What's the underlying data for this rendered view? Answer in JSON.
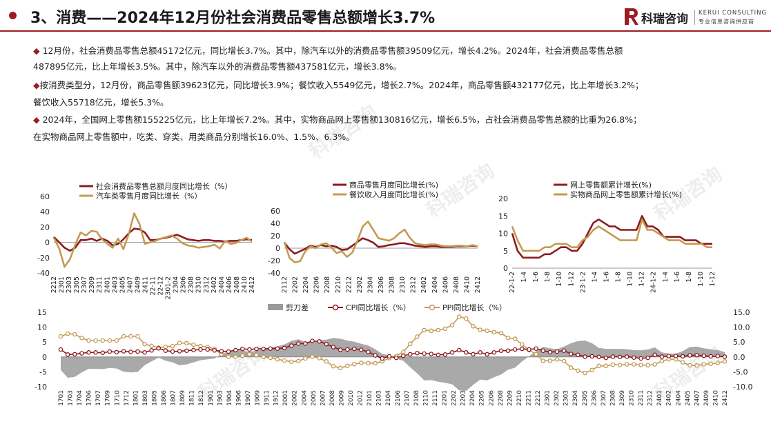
{
  "header": {
    "title": "3、消费——2024年12月份社会消费品零售总额增长3.7%",
    "logo_cn": "科瑞咨询",
    "logo_en": "KERUI CONSULTING",
    "logo_sub": "专业信息咨询供应商",
    "accent": "#9b1c22"
  },
  "paragraphs": [
    {
      "bullet": "◆",
      "text": " 12月份，社会消费品零售总额45172亿元，同比增长3.7%。其中，除汽车以外的消费品零售额39509亿元，增长4.2%。2024年，社会消费品零售总额"
    },
    {
      "bullet": "",
      "text": "487895亿元，比上年增长3.5%。其中，除汽车以外的消费品零售额437581亿元，增长3.8%。"
    },
    {
      "bullet": "◆",
      "text": "按消费类型分，12月份，商品零售额39623亿元，同比增长3.9%；餐饮收入5549亿元，增长2.7%。2024年，商品零售额432177亿元，比上年增长3.2%；"
    },
    {
      "bullet": "",
      "text": "餐饮收入55718亿元，增长5.3%。"
    },
    {
      "bullet": "◆",
      "text": " 2024年，全国网上零售额155225亿元，比上年增长7.2%。其中，实物商品网上零售额130816亿元，增长6.5%，占社会消费品零售总额的比重为26.8%；"
    },
    {
      "bullet": "",
      "text": "在实物商品网上零售额中，吃类、穿类、用类商品分别增长16.0%、1.5%、6.3%。"
    }
  ],
  "chart_data": [
    {
      "type": "line",
      "series": [
        {
          "name": "社会消费品零售总额月度同比增长（%）",
          "color": "#8b1a1f",
          "values": [
            7,
            0,
            -7,
            -11,
            -7,
            3,
            3,
            5,
            2,
            5,
            2,
            -4,
            -2,
            4,
            12,
            18,
            17,
            13,
            3,
            3,
            5,
            6,
            8,
            10,
            7,
            4,
            3,
            2,
            3,
            3,
            2,
            2,
            1,
            2,
            2,
            3,
            4,
            3
          ]
        },
        {
          "name": "汽车类零售月度同比增长（%）",
          "color": "#c49a52",
          "values": [
            6,
            -8,
            -32,
            -22,
            -3,
            13,
            9,
            15,
            14,
            4,
            -2,
            -7,
            5,
            -9,
            11,
            38,
            24,
            -2,
            0,
            2,
            5,
            7,
            9,
            5,
            -1,
            -4,
            -5,
            -7,
            -6,
            -5,
            -3,
            -8,
            2,
            -2,
            -1,
            3,
            6,
            1
          ]
        }
      ],
      "yticks": [
        "60",
        "40",
        "20",
        "0",
        "-20",
        "-40"
      ],
      "ylim": [
        -40,
        60
      ],
      "xticks": [
        "2212",
        "2301",
        "2303",
        "2305",
        "2307",
        "2309",
        "2311",
        "2401",
        "2403",
        "2405",
        "2407",
        "2409",
        "2411",
        "22-11",
        "22-12",
        "2301-2",
        "2304",
        "2306",
        "2308",
        "2310",
        "2312",
        "2402",
        "2404",
        "2406",
        "2408",
        "2410",
        "2412"
      ]
    },
    {
      "type": "line",
      "series": [
        {
          "name": "商品零售月度同比增长(%)",
          "color": "#8b1a1f",
          "values": [
            9,
            -2,
            -9,
            -5,
            -1,
            4,
            2,
            5,
            3,
            4,
            2,
            -3,
            -2,
            4,
            10,
            16,
            13,
            9,
            2,
            3,
            5,
            6,
            8,
            8,
            6,
            4,
            3,
            2,
            3,
            3,
            2,
            2,
            2,
            3,
            3,
            3,
            4,
            3
          ]
        },
        {
          "name": "餐饮收入月度同比增长(%)",
          "color": "#c49a52",
          "values": [
            10,
            -16,
            -23,
            -21,
            -5,
            3,
            0,
            6,
            8,
            1,
            -8,
            -5,
            -14,
            -7,
            12,
            35,
            43,
            30,
            16,
            14,
            12,
            16,
            24,
            30,
            17,
            8,
            6,
            5,
            6,
            6,
            4,
            3,
            3,
            4,
            4,
            3,
            5,
            3
          ]
        }
      ],
      "yticks": [
        "60",
        "40",
        "20",
        "0",
        "-20",
        "-40"
      ],
      "ylim": [
        -40,
        60
      ],
      "xticks": [
        "2112",
        "2202",
        "2204",
        "2206",
        "2208",
        "2210",
        "2212",
        "2302",
        "2304",
        "2306",
        "2308",
        "2310",
        "2312",
        "2402",
        "2404",
        "2406",
        "2408",
        "2410",
        "2412"
      ]
    },
    {
      "type": "line",
      "series": [
        {
          "name": "网上零售额累计增长(%)",
          "color": "#8b1a1f",
          "values": [
            10,
            5,
            3,
            3,
            3,
            3,
            4,
            4,
            5,
            6,
            6,
            5,
            5,
            7,
            10,
            13,
            14,
            13,
            12,
            12,
            11,
            11,
            11,
            11,
            15,
            12,
            12,
            11,
            9,
            9,
            9,
            9,
            8,
            8,
            8,
            7,
            7,
            7
          ]
        },
        {
          "name": "实物商品网上零售额累计增长(%)",
          "color": "#c49a52",
          "values": [
            12,
            8,
            5,
            5,
            5,
            5,
            6,
            6,
            7,
            7,
            7,
            6,
            6,
            8,
            9,
            11,
            12,
            11,
            10,
            9,
            8,
            8,
            8,
            8,
            14,
            11,
            11,
            10,
            9,
            8,
            8,
            8,
            7,
            7,
            7,
            7,
            6,
            6
          ]
        }
      ],
      "yticks": [
        "20",
        "15",
        "10",
        "5",
        "0"
      ],
      "ylim": [
        0,
        20
      ],
      "xticks": [
        "22-1-2",
        "1-4",
        "1-6",
        "1-8",
        "1-10",
        "1-12",
        "23-1-2",
        "1-4",
        "1-6",
        "1-8",
        "1-10",
        "1-12",
        "24-1-2",
        "1-4",
        "1-6",
        "1-8",
        "1-10",
        "1-12"
      ]
    },
    {
      "type": "line",
      "legend": [
        "剪刀差",
        "CPI同比增长（%）",
        "PPI同比增长（%）"
      ],
      "colors": {
        "gap": "#9a9a9a",
        "cpi": "#8b1a1f",
        "ppi": "#c49a52"
      },
      "cpi": [
        2.5,
        0.8,
        0.9,
        1.2,
        1.5,
        1.5,
        1.4,
        1.8,
        1.6,
        1.9,
        1.7,
        1.8,
        1.5,
        2.2,
        2.9,
        2.1,
        1.8,
        1.9,
        2.1,
        2.3,
        2.5,
        2.5,
        2.2,
        1.9,
        1.8,
        2.3,
        2.7,
        2.5,
        2.7,
        2.7,
        2.8,
        2.8,
        3.0,
        3.8,
        4.5,
        4.5,
        5.4,
        5.2,
        4.3,
        3.3,
        2.4,
        2.5,
        2.7,
        2.4,
        1.7,
        0.5,
        -0.5,
        0.2,
        -0.3,
        0.4,
        0.9,
        1.3,
        1.1,
        1.0,
        0.7,
        0.8,
        1.5,
        2.3,
        1.5,
        0.9,
        1.5,
        0.9,
        1.5,
        2.1,
        2.1,
        2.5,
        2.7,
        2.5,
        2.8,
        2.1,
        1.6,
        1.8,
        2.1,
        1.0,
        0.7,
        0.1,
        0.2,
        0.0,
        -0.3,
        0.1,
        0.0,
        0.1,
        -0.2,
        -0.5,
        -0.3,
        0.7,
        0.1,
        0.3,
        0.3,
        0.2,
        0.5,
        0.6,
        0.4,
        0.2,
        0.3,
        0.1
      ],
      "ppi": [
        6.9,
        7.8,
        7.6,
        6.4,
        5.5,
        5.5,
        5.5,
        5.5,
        5.5,
        6.9,
        6.9,
        6.9,
        4.3,
        3.7,
        3.1,
        3.4,
        3.6,
        4.7,
        4.6,
        4.1,
        3.6,
        3.3,
        2.7,
        0.9,
        0.1,
        0.1,
        0.4,
        0.9,
        0.6,
        0.0,
        -0.3,
        -0.8,
        -1.2,
        -1.6,
        -1.4,
        -0.5,
        0.1,
        -0.4,
        -1.5,
        -3.1,
        -3.7,
        -3.0,
        -2.4,
        -2.0,
        -2.1,
        -2.1,
        -1.5,
        -0.4,
        0.3,
        1.7,
        4.4,
        6.8,
        9.0,
        8.8,
        9.0,
        9.5,
        10.7,
        13.5,
        12.9,
        10.3,
        9.1,
        8.8,
        8.3,
        8.0,
        6.4,
        6.1,
        4.2,
        2.3,
        0.9,
        -1.3,
        -1.3,
        -0.8,
        -1.4,
        -3.6,
        -4.6,
        -5.4,
        -4.4,
        -3.0,
        -3.0,
        -2.6,
        -2.7,
        -2.5,
        -2.5,
        -2.7,
        -2.8,
        -2.5,
        -1.4,
        -0.8,
        -0.8,
        -1.8,
        -2.8,
        -2.9,
        -2.5,
        -2.3,
        -2.0,
        -1.5
      ],
      "gap": [
        -4.4,
        -7.0,
        -6.7,
        -5.2,
        -4.0,
        -4.0,
        -4.1,
        -3.7,
        -3.9,
        -5.0,
        -5.2,
        -5.1,
        -2.8,
        -1.5,
        -0.2,
        -1.3,
        -1.8,
        -2.8,
        -2.5,
        -1.8,
        -1.1,
        -0.8,
        -0.5,
        1.0,
        1.7,
        2.2,
        2.3,
        1.6,
        2.1,
        2.7,
        3.1,
        3.6,
        4.2,
        5.4,
        5.9,
        5.0,
        5.3,
        5.6,
        5.8,
        6.4,
        6.1,
        5.5,
        5.1,
        4.4,
        3.8,
        2.6,
        1.0,
        0.6,
        -0.6,
        -1.3,
        -3.5,
        -5.5,
        -7.9,
        -7.8,
        -8.3,
        -8.7,
        -9.2,
        -11.2,
        -11.4,
        -9.4,
        -7.6,
        -7.9,
        -6.8,
        -5.9,
        -4.3,
        -3.6,
        -1.5,
        0.2,
        1.9,
        3.4,
        2.9,
        2.6,
        3.5,
        4.6,
        5.3,
        5.5,
        4.6,
        3.0,
        2.7,
        2.7,
        2.7,
        2.6,
        2.3,
        2.2,
        2.5,
        3.2,
        1.5,
        1.1,
        1.1,
        2.0,
        3.3,
        3.5,
        2.9,
        2.5,
        2.3,
        1.6
      ],
      "yticks_left": [
        "15",
        "10",
        "5",
        "0",
        "-5",
        "-10"
      ],
      "yticks_right": [
        "15.0",
        "10.0",
        "5.0",
        "0.0",
        "-5.0",
        "-10.0"
      ],
      "ylim": [
        -10,
        15
      ],
      "xticks": [
        "1701",
        "1703",
        "1704",
        "1706",
        "1707",
        "1709",
        "1710",
        "1712",
        "1801",
        "1803",
        "1805",
        "1806",
        "1807",
        "1809",
        "1811",
        "1812",
        "1901",
        "1903",
        "1904",
        "1906",
        "1907",
        "1909",
        "1911",
        "1912",
        "2001",
        "2002",
        "2004",
        "2005",
        "2007",
        "2008",
        "2009",
        "2010",
        "2012",
        "2101",
        "2103",
        "2104",
        "2106",
        "2107",
        "2108",
        "2110",
        "2111",
        "2201",
        "2202",
        "2203",
        "2204",
        "2205",
        "2206",
        "2208",
        "2209",
        "2210",
        "2211",
        "2212",
        "2301",
        "2302",
        "2303",
        "2304",
        "2305",
        "2306",
        "2307",
        "2308",
        "2309",
        "2310",
        "2311",
        "2312",
        "2401",
        "2402",
        "2404",
        "2405",
        "2407",
        "2409",
        "2410",
        "2412"
      ]
    }
  ],
  "watermark": "科瑞咨询"
}
